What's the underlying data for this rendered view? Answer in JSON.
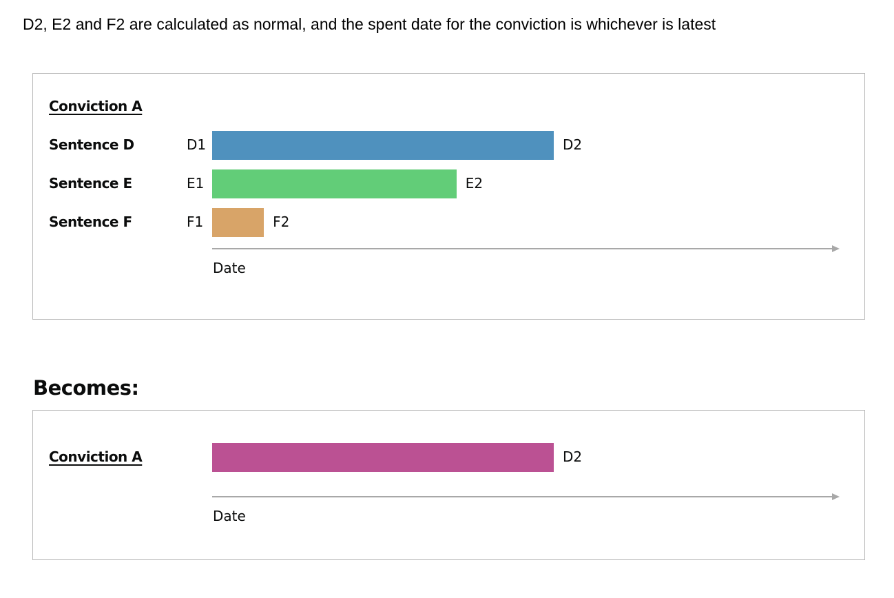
{
  "intro_text": "D2, E2 and F2 are calculated as normal, and the spent date for the conviction is whichever is latest",
  "before": {
    "conviction_label": "Conviction A",
    "rows": [
      {
        "label": "Sentence D",
        "start_label": "D1",
        "end_label": "D2",
        "start": 0,
        "end": 0.548,
        "color": "#4f91be"
      },
      {
        "label": "Sentence E",
        "start_label": "E1",
        "end_label": "E2",
        "start": 0,
        "end": 0.392,
        "color": "#62cd78"
      },
      {
        "label": "Sentence F",
        "start_label": "F1",
        "end_label": "F2",
        "start": 0,
        "end": 0.083,
        "color": "#d8a468"
      }
    ],
    "axis_label": "Date"
  },
  "becomes_label": "Becomes:",
  "after": {
    "conviction_label": "Conviction A",
    "bar": {
      "end_label": "D2",
      "start": 0,
      "end": 0.548,
      "color": "#bb5193"
    },
    "axis_label": "Date"
  },
  "colors": {
    "axis": "#a8a8a8",
    "panel_border": "#b8b8b8"
  }
}
